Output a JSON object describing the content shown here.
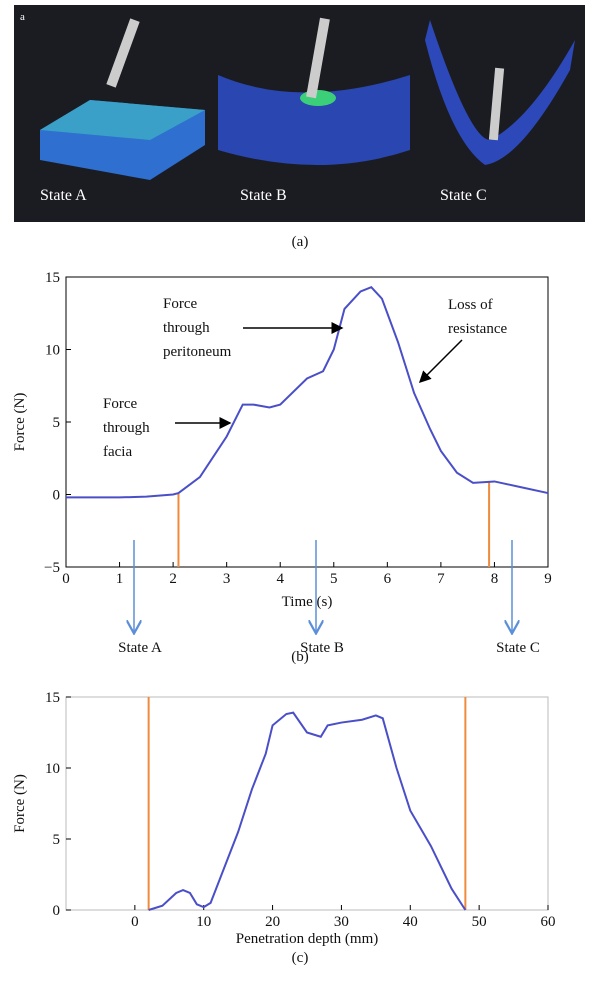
{
  "panel_a": {
    "tag": "a",
    "labels": [
      "State A",
      "State B",
      "State C"
    ],
    "caption": "(a)"
  },
  "chart_data": [
    {
      "type": "line",
      "caption": "(b)",
      "x_label": "Time (s)",
      "y_label": "Force (N)",
      "x": [
        0,
        1,
        1.5,
        2,
        2.1,
        2.5,
        3,
        3.3,
        3.5,
        3.8,
        4,
        4.5,
        4.8,
        5,
        5.2,
        5.5,
        5.7,
        5.9,
        6.2,
        6.5,
        6.8,
        7,
        7.3,
        7.6,
        8,
        8.5,
        9
      ],
      "series": [
        {
          "color": "#4a4fc8",
          "values": [
            -0.2,
            -0.2,
            -0.15,
            0,
            0.1,
            1.2,
            4,
            6.2,
            6.2,
            6,
            6.2,
            8,
            8.5,
            10,
            12.8,
            14,
            14.3,
            13.5,
            10.5,
            7,
            4.5,
            3,
            1.5,
            0.8,
            0.9,
            0.5,
            0.1
          ]
        }
      ],
      "vlines": [
        {
          "x": 2.1,
          "y": 0.1
        },
        {
          "x": 7.9,
          "y": 0.9
        }
      ],
      "vline_color": "#f08a3c",
      "xlim": [
        0,
        9
      ],
      "ylim": [
        -5,
        15
      ],
      "xticks": [
        0,
        1,
        2,
        3,
        4,
        5,
        6,
        7,
        8,
        9
      ],
      "yticks": [
        {
          "value": -5,
          "label": "−5"
        },
        0,
        5,
        10,
        15
      ],
      "annotations": [
        [
          "Force",
          "through",
          "facia"
        ],
        [
          "Force",
          "through",
          "peritoneum"
        ],
        [
          "Loss of",
          "resistance"
        ]
      ],
      "states": [
        "State A",
        "State B",
        "State C"
      ]
    },
    {
      "type": "line",
      "caption": "(c)",
      "x_label": "Penetration depth (mm)",
      "y_label": "Force (N)",
      "x": [
        2,
        4,
        6,
        7,
        8,
        9,
        10,
        11,
        13,
        15,
        17,
        19,
        20,
        22,
        23,
        25,
        27,
        28,
        30,
        33,
        35,
        36,
        38,
        40,
        43,
        46,
        48
      ],
      "series": [
        {
          "color": "#4a4fc8",
          "values": [
            0,
            0.3,
            1.2,
            1.4,
            1.2,
            0.4,
            0.2,
            0.5,
            3,
            5.5,
            8.5,
            11,
            13,
            13.8,
            13.9,
            12.5,
            12.2,
            13,
            13.2,
            13.4,
            13.7,
            13.5,
            10,
            7,
            4.5,
            1.5,
            0
          ]
        }
      ],
      "vlines": [
        {
          "x": 2,
          "y": 15
        },
        {
          "x": 48,
          "y": 15
        }
      ],
      "vline_color": "#f08a3c",
      "xlim": [
        -10,
        60
      ],
      "ylim": [
        0,
        15
      ],
      "xticks": [
        0,
        10,
        20,
        30,
        40,
        50,
        60
      ],
      "yticks": [
        0,
        5,
        10,
        15
      ]
    }
  ]
}
